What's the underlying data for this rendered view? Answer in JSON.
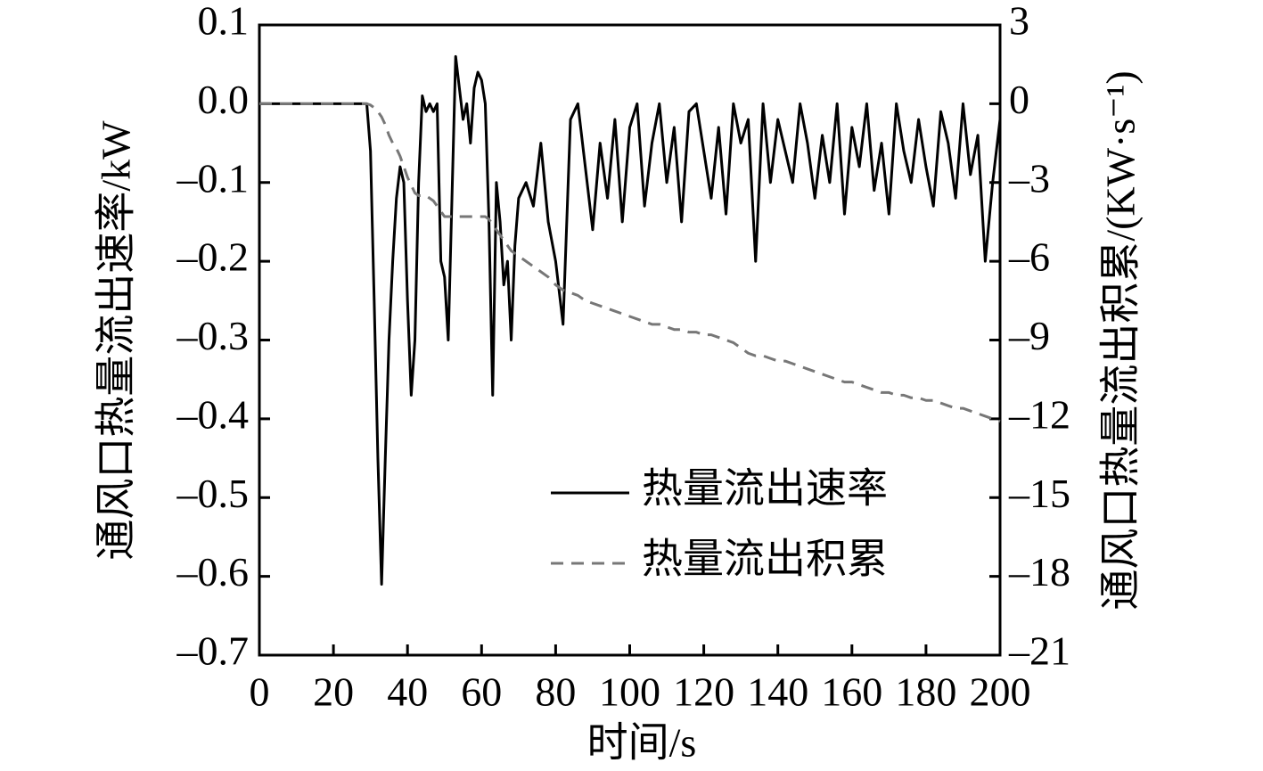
{
  "chart_data": {
    "type": "line",
    "x_label": "时间/s",
    "y_label": "通风口热量流出速率/kW",
    "y2_label": "通风口热量流出积累/(KW·s⁻¹)",
    "x": [
      0,
      5,
      10,
      15,
      20,
      25,
      28,
      29,
      30,
      31,
      32,
      33,
      34,
      35,
      36,
      37,
      38,
      39,
      40,
      41,
      42,
      43,
      44,
      45,
      46,
      47,
      48,
      49,
      50,
      51,
      52,
      53,
      54,
      55,
      56,
      57,
      58,
      59,
      60,
      61,
      62,
      63,
      64,
      65,
      66,
      67,
      68,
      69,
      70,
      72,
      74,
      76,
      78,
      80,
      82,
      84,
      86,
      88,
      90,
      92,
      94,
      96,
      98,
      100,
      102,
      104,
      106,
      108,
      110,
      112,
      114,
      116,
      118,
      120,
      122,
      124,
      126,
      128,
      130,
      132,
      134,
      136,
      138,
      140,
      142,
      144,
      146,
      148,
      150,
      152,
      154,
      156,
      158,
      160,
      162,
      164,
      166,
      168,
      170,
      172,
      174,
      176,
      178,
      180,
      182,
      184,
      186,
      188,
      190,
      192,
      194,
      196,
      198,
      200
    ],
    "series": [
      {
        "name": "热量流出速率",
        "color": "#000000",
        "dash": false,
        "values": [
          0,
          0,
          0,
          0,
          0,
          0,
          0,
          0,
          -0.06,
          -0.25,
          -0.45,
          -0.61,
          -0.45,
          -0.3,
          -0.2,
          -0.12,
          -0.08,
          -0.1,
          -0.25,
          -0.37,
          -0.3,
          -0.1,
          0.01,
          -0.01,
          0.0,
          -0.01,
          0.0,
          -0.2,
          -0.22,
          -0.3,
          -0.12,
          0.06,
          0.02,
          -0.02,
          0.0,
          -0.05,
          0.02,
          0.04,
          0.03,
          0.0,
          -0.15,
          -0.37,
          -0.1,
          -0.15,
          -0.23,
          -0.2,
          -0.3,
          -0.18,
          -0.12,
          -0.1,
          -0.13,
          -0.05,
          -0.15,
          -0.2,
          -0.28,
          -0.02,
          0.0,
          -0.08,
          -0.16,
          -0.05,
          -0.12,
          -0.02,
          -0.15,
          -0.03,
          0.0,
          -0.13,
          -0.05,
          0.0,
          -0.1,
          -0.03,
          -0.15,
          -0.01,
          0.0,
          -0.06,
          -0.12,
          -0.03,
          -0.14,
          0.0,
          -0.05,
          -0.02,
          -0.2,
          0.0,
          -0.1,
          -0.02,
          -0.06,
          -0.1,
          0.0,
          -0.05,
          -0.12,
          -0.04,
          -0.1,
          0.0,
          -0.14,
          -0.03,
          -0.08,
          0.0,
          -0.11,
          -0.05,
          -0.14,
          0.0,
          -0.06,
          -0.1,
          -0.02,
          -0.08,
          -0.13,
          -0.01,
          -0.05,
          -0.12,
          0.0,
          -0.09,
          -0.04,
          -0.2,
          -0.1,
          -0.02
        ]
      },
      {
        "name": "热量流出积累",
        "color": "#777777",
        "dash": true,
        "axis": "y2",
        "values": [
          0,
          0,
          0,
          0,
          0,
          0,
          0,
          0,
          -0.05,
          -0.15,
          -0.3,
          -0.5,
          -0.8,
          -1.2,
          -1.5,
          -1.7,
          -2.0,
          -2.4,
          -2.8,
          -3.1,
          -3.4,
          -3.5,
          -3.5,
          -3.5,
          -3.6,
          -3.7,
          -3.9,
          -4.1,
          -4.3,
          -4.3,
          -4.3,
          -4.3,
          -4.3,
          -4.3,
          -4.3,
          -4.3,
          -4.3,
          -4.3,
          -4.3,
          -4.3,
          -4.4,
          -4.6,
          -4.8,
          -5.0,
          -5.2,
          -5.4,
          -5.6,
          -5.7,
          -5.8,
          -6.0,
          -6.2,
          -6.4,
          -6.6,
          -6.9,
          -7.1,
          -7.2,
          -7.3,
          -7.5,
          -7.6,
          -7.7,
          -7.8,
          -7.9,
          -8.0,
          -8.1,
          -8.2,
          -8.3,
          -8.4,
          -8.4,
          -8.5,
          -8.6,
          -8.6,
          -8.7,
          -8.7,
          -8.8,
          -8.8,
          -8.9,
          -9.0,
          -9.1,
          -9.3,
          -9.5,
          -9.6,
          -9.6,
          -9.7,
          -9.8,
          -9.8,
          -9.9,
          -10.0,
          -10.1,
          -10.2,
          -10.3,
          -10.4,
          -10.5,
          -10.6,
          -10.6,
          -10.7,
          -10.8,
          -10.9,
          -11.0,
          -11.0,
          -11.1,
          -11.1,
          -11.2,
          -11.2,
          -11.3,
          -11.3,
          -11.4,
          -11.5,
          -11.6,
          -11.6,
          -11.7,
          -11.8,
          -11.9,
          -12.0,
          -12.1
        ]
      }
    ],
    "xlim": [
      0,
      200
    ],
    "xticks": [
      0,
      20,
      40,
      60,
      80,
      100,
      120,
      140,
      160,
      180,
      200
    ],
    "ylim": [
      -0.7,
      0.1
    ],
    "yticks": [
      0.1,
      {
        "value": 0,
        "label": "0.0"
      },
      {
        "value": -0.1,
        "label": "–0.1"
      },
      {
        "value": -0.2,
        "label": "–0.2"
      },
      {
        "value": -0.3,
        "label": "–0.3"
      },
      {
        "value": -0.4,
        "label": "–0.4"
      },
      {
        "value": -0.5,
        "label": "–0.5"
      },
      {
        "value": -0.6,
        "label": "–0.6"
      },
      {
        "value": -0.7,
        "label": "–0.7"
      }
    ],
    "y2lim": [
      -21,
      3
    ],
    "y2ticks": [
      3,
      0,
      {
        "value": -3,
        "label": "–3"
      },
      {
        "value": -6,
        "label": "–6"
      },
      {
        "value": -9,
        "label": "–9"
      },
      {
        "value": -12,
        "label": "–12"
      },
      {
        "value": -15,
        "label": "–15"
      },
      {
        "value": -18,
        "label": "–18"
      },
      {
        "value": -21,
        "label": "–21"
      }
    ],
    "grid": false,
    "legend": "lower right"
  }
}
